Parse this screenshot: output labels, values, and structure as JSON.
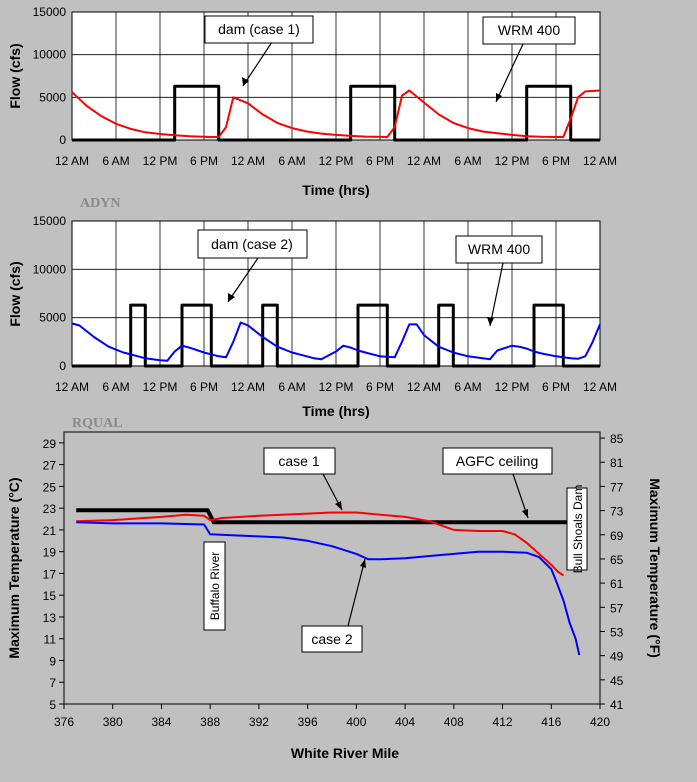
{
  "chart_data": [
    {
      "type": "line",
      "ylabel": "Flow (cfs)",
      "xlabel": "Time (hrs)",
      "ylim": [
        0,
        15000
      ],
      "yticks": [
        "0",
        "5000",
        "10000",
        "15000"
      ],
      "xticks": [
        "12 AM",
        "6 AM",
        "12 PM",
        "6 PM",
        "12 AM",
        "6 AM",
        "12 PM",
        "6 PM",
        "12 AM",
        "6 AM",
        "12 PM",
        "6 PM",
        "12 AM"
      ],
      "xlim_hours": [
        0,
        72
      ],
      "series": [
        {
          "name": "dam (case 1)",
          "color": "#000000",
          "x": [
            0,
            14,
            14,
            20,
            20,
            38,
            38,
            44,
            44,
            62,
            62,
            68,
            68,
            72
          ],
          "y": [
            0,
            0,
            6300,
            6300,
            0,
            0,
            6300,
            6300,
            0,
            0,
            6300,
            6300,
            0,
            0
          ]
        },
        {
          "name": "WRM 400",
          "color": "#ff0000",
          "x": [
            0,
            2,
            4,
            6,
            8,
            10,
            12,
            14,
            16,
            18,
            19,
            20,
            21,
            22,
            24,
            26,
            28,
            30,
            32,
            34,
            36,
            38,
            40,
            42,
            43,
            44,
            45,
            46,
            48,
            50,
            52,
            54,
            56,
            58,
            60,
            62,
            64,
            66,
            67,
            68,
            69,
            70,
            72
          ],
          "y": [
            5600,
            4000,
            2800,
            1900,
            1300,
            900,
            700,
            550,
            450,
            380,
            350,
            350,
            1500,
            5000,
            4300,
            3000,
            2000,
            1400,
            1000,
            750,
            600,
            480,
            400,
            360,
            350,
            1500,
            5200,
            5800,
            4400,
            3000,
            2000,
            1400,
            1000,
            800,
            600,
            450,
            380,
            350,
            350,
            2500,
            5000,
            5700,
            5800
          ]
        }
      ]
    },
    {
      "type": "line",
      "section_label": "ADYN",
      "ylabel": "Flow (cfs)",
      "xlabel": "Time (hrs)",
      "ylim": [
        0,
        15000
      ],
      "yticks": [
        "0",
        "5000",
        "10000",
        "15000"
      ],
      "xticks": [
        "12 AM",
        "6 AM",
        "12 PM",
        "6 PM",
        "12 AM",
        "6 AM",
        "12 PM",
        "6 PM",
        "12 AM",
        "6 AM",
        "12 PM",
        "6 PM",
        "12 AM"
      ],
      "xlim_hours": [
        0,
        72
      ],
      "series": [
        {
          "name": "dam (case 2)",
          "color": "#000000",
          "x": [
            0,
            8,
            8,
            10,
            10,
            15,
            15,
            19,
            19,
            26,
            26,
            28,
            28,
            39,
            39,
            43,
            43,
            50,
            50,
            52,
            52,
            63,
            63,
            67,
            67,
            72
          ],
          "y": [
            0,
            0,
            6300,
            6300,
            0,
            0,
            6300,
            6300,
            0,
            0,
            6300,
            6300,
            0,
            0,
            6300,
            6300,
            0,
            0,
            6300,
            6300,
            0,
            0,
            6300,
            6300,
            0,
            0
          ]
        },
        {
          "name": "WRM 400",
          "color": "#0000ff",
          "x": [
            0,
            1,
            3,
            5,
            7,
            9,
            10,
            11,
            12,
            13,
            14,
            15,
            16,
            18,
            20,
            21,
            22,
            23,
            24,
            26,
            28,
            30,
            32,
            33,
            34,
            36,
            37,
            38,
            39,
            40,
            42,
            44,
            45,
            46,
            47,
            48,
            50,
            52,
            54,
            56,
            57,
            58,
            60,
            61,
            62,
            63,
            64,
            66,
            68,
            69,
            70,
            71,
            72
          ],
          "y": [
            4400,
            4200,
            3000,
            2000,
            1400,
            1000,
            800,
            700,
            600,
            550,
            1500,
            2100,
            1900,
            1400,
            1000,
            900,
            2500,
            4500,
            4200,
            3000,
            2000,
            1400,
            1000,
            800,
            700,
            1500,
            2100,
            1900,
            1600,
            1400,
            1000,
            900,
            2500,
            4300,
            4300,
            3200,
            2000,
            1400,
            1000,
            800,
            700,
            1600,
            2100,
            2000,
            1800,
            1500,
            1300,
            1000,
            800,
            750,
            1000,
            2500,
            4300
          ]
        }
      ]
    },
    {
      "type": "line",
      "section_label": "RQUAL",
      "xlabel": "White River Mile",
      "ylabel": "Maximum Temperature (°C)",
      "y2label": "Maximum Temperature (°F)",
      "xlim": [
        376,
        420
      ],
      "ylim": [
        5,
        30
      ],
      "y2lim": [
        41,
        86
      ],
      "xticks": [
        "376",
        "380",
        "384",
        "388",
        "392",
        "396",
        "400",
        "404",
        "408",
        "412",
        "416",
        "420"
      ],
      "yticks": [
        "5",
        "7",
        "9",
        "11",
        "13",
        "15",
        "17",
        "19",
        "21",
        "23",
        "25",
        "27",
        "29"
      ],
      "y2ticks": [
        "41",
        "45",
        "49",
        "53",
        "57",
        "61",
        "65",
        "69",
        "73",
        "77",
        "81",
        "85"
      ],
      "series": [
        {
          "name": "AGFC ceiling",
          "color": "#000000",
          "x": [
            377,
            387.8,
            388.3,
            418.2
          ],
          "y": [
            22.8,
            22.8,
            21.7,
            21.7
          ]
        },
        {
          "name": "case 1",
          "color": "#ff0000",
          "x": [
            377,
            380,
            384,
            386,
            387.5,
            388,
            389,
            392,
            396,
            398,
            400,
            402,
            404,
            406,
            407,
            408,
            410,
            412,
            413,
            414,
            415,
            416,
            416.5,
            417
          ],
          "y": [
            21.8,
            21.9,
            22.2,
            22.4,
            22.3,
            21.9,
            22.1,
            22.3,
            22.5,
            22.6,
            22.6,
            22.4,
            22.2,
            21.8,
            21.4,
            21.0,
            20.9,
            20.9,
            20.6,
            19.8,
            18.8,
            17.8,
            17.2,
            16.8
          ]
        },
        {
          "name": "case 2",
          "color": "#0000ff",
          "x": [
            377,
            380,
            384,
            387.5,
            388,
            390,
            392,
            394,
            396,
            398,
            400,
            401,
            402,
            404,
            406,
            408,
            410,
            412,
            414,
            415,
            416,
            416.5,
            417,
            417.5,
            418,
            418.3
          ],
          "y": [
            21.7,
            21.6,
            21.6,
            21.5,
            20.6,
            20.5,
            20.4,
            20.3,
            20.0,
            19.5,
            18.8,
            18.3,
            18.3,
            18.4,
            18.6,
            18.8,
            19.0,
            19.0,
            18.9,
            18.5,
            17.4,
            16.0,
            14.5,
            12.5,
            11.0,
            9.5
          ]
        }
      ],
      "annotations": [
        "Buffalo River",
        "Bull Shoals Dam"
      ]
    }
  ],
  "callouts": {
    "top_dam": "dam (case 1)",
    "top_wrm": "WRM 400",
    "mid_dam": "dam (case 2)",
    "mid_wrm": "WRM 400",
    "bot_case1": "case 1",
    "bot_agfc": "AGFC ceiling",
    "bot_case2": "case 2",
    "bot_buffalo": "Buffalo River",
    "bot_bull": "Bull Shoals Dam"
  },
  "labels": {
    "section_adyn": "ADYN",
    "section_rqual": "RQUAL"
  }
}
